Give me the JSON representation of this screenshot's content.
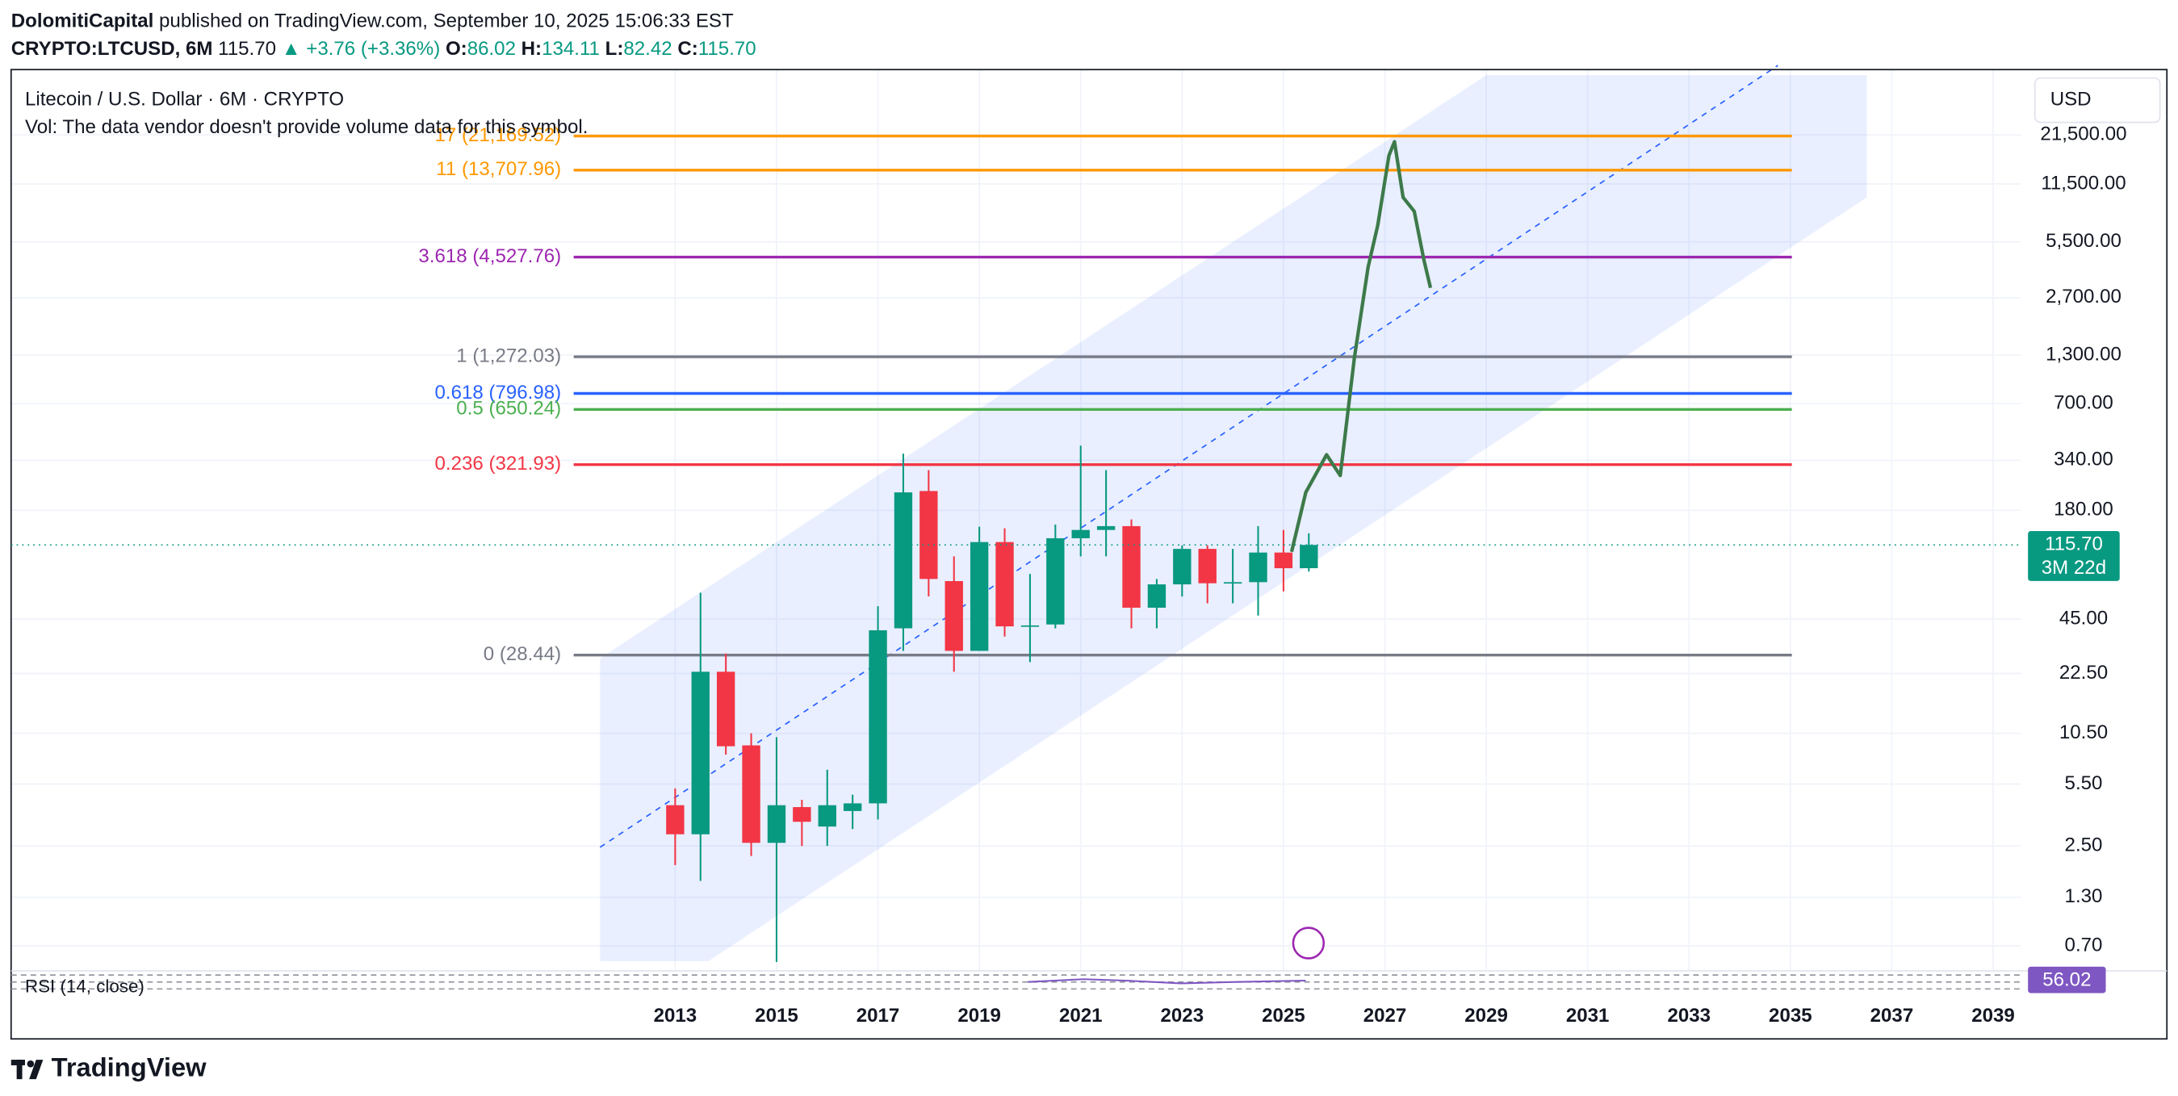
{
  "header": {
    "author": "DolomitiCapital",
    "published": "published on TradingView.com, September 10, 2025 15:06:33 EST",
    "symbol": "CRYPTO:LTCUSD, 6M",
    "price": "115.70",
    "change": "▲ +3.76 (+3.36%)",
    "ohlc": [
      {
        "label": "O:",
        "value": "86.02"
      },
      {
        "label": "H:",
        "value": "134.11"
      },
      {
        "label": "L:",
        "value": "82.42"
      },
      {
        "label": "C:",
        "value": "115.70"
      }
    ]
  },
  "brand": "TradingView",
  "chart_data": {
    "type": "candlestick",
    "title": "Litecoin / U.S. Dollar · 6M · CRYPTO",
    "subtitle": "Vol: The data vendor doesn't provide volume data for this symbol.",
    "currency": "USD",
    "log_scale": true,
    "grid": true,
    "up_color": "#089981",
    "down_color": "#f23645",
    "xlim": [
      1999.9,
      2039.55
    ],
    "xticks": [
      2013,
      2015,
      2017,
      2019,
      2021,
      2023,
      2025,
      2027,
      2029,
      2031,
      2033,
      2035,
      2037,
      2039
    ],
    "ylim": [
      0.509,
      47640
    ],
    "yticks": [
      {
        "value": 21500,
        "label": "21,500.00"
      },
      {
        "value": 11500,
        "label": "11,500.00"
      },
      {
        "value": 5500,
        "label": "5,500.00"
      },
      {
        "value": 2700,
        "label": "2,700.00"
      },
      {
        "value": 1300,
        "label": "1,300.00"
      },
      {
        "value": 700,
        "label": "700.00"
      },
      {
        "value": 340,
        "label": "340.00"
      },
      {
        "value": 180,
        "label": "180.00"
      },
      {
        "value": 45,
        "label": "45.00"
      },
      {
        "value": 22.5,
        "label": "22.50"
      },
      {
        "value": 10.5,
        "label": "10.50"
      },
      {
        "value": 5.5,
        "label": "5.50"
      },
      {
        "value": 2.5,
        "label": "2.50"
      },
      {
        "value": 1.3,
        "label": "1.30"
      },
      {
        "value": 0.7,
        "label": "0.70"
      }
    ],
    "candles": {
      "x": [
        2013,
        2013.5,
        2014,
        2014.5,
        2015,
        2015.5,
        2016,
        2016.5,
        2017,
        2017.5,
        2018,
        2018.5,
        2019,
        2019.5,
        2020,
        2020.5,
        2021,
        2021.5,
        2022,
        2022.5,
        2023,
        2023.5,
        2024,
        2024.5,
        2025,
        2025.5
      ],
      "open": [
        4.2,
        2.9,
        23,
        9,
        2.6,
        4.1,
        3.2,
        3.9,
        4.3,
        40,
        230,
        73,
        30,
        120,
        41,
        42,
        126,
        140,
        147,
        52,
        70,
        110,
        71,
        72,
        105,
        86.02
      ],
      "high": [
        5.2,
        63,
        29,
        10.5,
        10,
        4.5,
        6.6,
        4.8,
        53,
        370,
        300,
        100,
        146,
        143,
        80,
        150,
        410,
        300,
        160,
        75,
        115,
        115,
        110,
        147,
        140,
        134.11
      ],
      "low": [
        1.96,
        1.6,
        8,
        2.2,
        0.57,
        2.5,
        2.5,
        3.1,
        3.5,
        30,
        60,
        23,
        30,
        36,
        26,
        40,
        100,
        100,
        40,
        40,
        60,
        55,
        55,
        47,
        64,
        82.42
      ],
      "close": [
        2.9,
        23,
        8.9,
        2.6,
        4.2,
        3.4,
        4.2,
        4.3,
        39,
        226,
        75,
        30,
        120,
        41,
        41.5,
        126,
        140,
        147,
        52,
        70,
        110,
        71,
        72,
        105,
        86,
        115.7
      ]
    },
    "projection": {
      "color": "#3d7a4a",
      "x": [
        2025.16,
        2025.44,
        2025.85,
        2026.12,
        2026.4,
        2026.67,
        2026.86,
        2027.08,
        2027.19,
        2027.36,
        2027.58,
        2027.77,
        2027.9
      ],
      "values": [
        106,
        226,
        365,
        280,
        1262,
        3990,
        6790,
        16500,
        19700,
        9690,
        8110,
        4370,
        3060
      ]
    },
    "levels": [
      {
        "label": "17 (21,169.52)",
        "value": 21169.52,
        "color": "#ff9800"
      },
      {
        "label": "11 (13,707.96)",
        "value": 13707.96,
        "color": "#ff9800"
      },
      {
        "label": "3.618 (4,527.76)",
        "value": 4527.76,
        "color": "#9c27b0"
      },
      {
        "label": "1 (1,272.03)",
        "value": 1272.03,
        "color": "#787b86"
      },
      {
        "label": "0.618 (796.98)",
        "value": 796.98,
        "color": "#2962ff"
      },
      {
        "label": "0.5 (650.24)",
        "value": 650.24,
        "color": "#4caf50"
      },
      {
        "label": "0.236 (321.93)",
        "value": 321.93,
        "color": "#f23645"
      },
      {
        "label": "0 (28.44)",
        "value": 28.44,
        "color": "#787b86"
      }
    ],
    "last_price": {
      "value": 115.7,
      "label": "115.70",
      "countdown": "3M 22d",
      "color": "#089981"
    },
    "rsi": {
      "label": "RSI (14, close)",
      "value": 56.02,
      "color": "#7e57c2"
    }
  }
}
